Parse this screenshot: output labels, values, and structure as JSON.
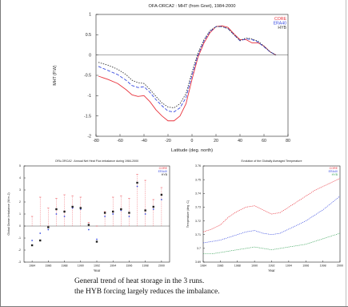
{
  "caption": {
    "line1": "General trend of heat storage in the 3 runs.",
    "line2": "the HYB forcing largely reduces the imbalance."
  },
  "chart_data": [
    {
      "type": "line",
      "title": "OFA-ORCA2 : MHT (from Gnet), 1984-2000",
      "xlabel": "Latitude (deg. north)",
      "ylabel": "MHT (P.W)",
      "xlim": [
        -80,
        80
      ],
      "ylim": [
        -2,
        1
      ],
      "xticks": [
        "-80",
        "-60",
        "-40",
        "-20",
        "0",
        "20",
        "40",
        "60",
        "80"
      ],
      "yticks": [
        "1",
        "0.5",
        "0",
        "-0.5",
        "-1",
        "-1.5",
        "-2"
      ],
      "grid": false,
      "legend": "top-right",
      "zero_line": true,
      "series": [
        {
          "name": "CORE",
          "color": "#e8323c",
          "x": [
            -78,
            -70,
            -62,
            -55,
            -50,
            -45,
            -40,
            -35,
            -30,
            -25,
            -20,
            -15,
            -10,
            -5,
            0,
            5,
            10,
            15,
            20,
            25,
            30,
            35,
            40,
            45,
            50,
            55,
            60,
            65,
            70
          ],
          "y": [
            -0.52,
            -0.6,
            -0.7,
            -0.85,
            -0.98,
            -1.02,
            -1.0,
            -1.15,
            -1.35,
            -1.5,
            -1.62,
            -1.62,
            -1.5,
            -1.2,
            -0.6,
            -0.05,
            0.3,
            0.55,
            0.7,
            0.72,
            0.68,
            0.52,
            0.38,
            0.38,
            0.3,
            0.3,
            0.22,
            0.08,
            0.0
          ]
        },
        {
          "name": "ERA40",
          "color": "#3a4ce0",
          "x": [
            -78,
            -70,
            -62,
            -55,
            -50,
            -45,
            -40,
            -35,
            -30,
            -25,
            -20,
            -15,
            -10,
            -5,
            0,
            5,
            10,
            15,
            20,
            25,
            30,
            35,
            40,
            45,
            50,
            55,
            60,
            65,
            70
          ],
          "y": [
            -0.28,
            -0.38,
            -0.48,
            -0.62,
            -0.75,
            -0.8,
            -0.78,
            -0.92,
            -1.1,
            -1.25,
            -1.38,
            -1.4,
            -1.3,
            -1.05,
            -0.5,
            0.0,
            0.35,
            0.58,
            0.7,
            0.7,
            0.65,
            0.5,
            0.35,
            0.4,
            0.38,
            0.32,
            0.2,
            0.08,
            0.0
          ]
        },
        {
          "name": "HYB",
          "color": "#3a3a3a",
          "x": [
            -78,
            -70,
            -62,
            -55,
            -50,
            -45,
            -40,
            -35,
            -30,
            -25,
            -20,
            -15,
            -10,
            -5,
            0,
            5,
            10,
            15,
            20,
            25,
            30,
            35,
            40,
            45,
            50,
            55,
            60,
            65,
            70
          ],
          "y": [
            -0.18,
            -0.25,
            -0.35,
            -0.48,
            -0.62,
            -0.68,
            -0.7,
            -0.85,
            -1.02,
            -1.18,
            -1.28,
            -1.3,
            -1.2,
            -0.95,
            -0.42,
            0.05,
            0.38,
            0.6,
            0.7,
            0.7,
            0.65,
            0.5,
            0.36,
            0.42,
            0.4,
            0.34,
            0.22,
            0.08,
            0.0
          ]
        }
      ]
    },
    {
      "type": "scatter",
      "title": "OFA-ORCA2 : Annual Net Heat Flux imbalance during 1984-2000",
      "xlabel": "Year",
      "ylabel": "Global Ocean Imbalance (W.m-2)",
      "xlim": [
        1983,
        2001
      ],
      "ylim": [
        -3,
        5
      ],
      "xticks": [
        "1984",
        "1986",
        "1988",
        "1990",
        "1992",
        "1994",
        "1996",
        "1998",
        "2000"
      ],
      "yticks": [
        "5",
        "4",
        "3",
        "2",
        "1",
        "0",
        "-1",
        "-2",
        "-3"
      ],
      "grid": false,
      "legend": "top-right",
      "zero_line": true,
      "series": [
        {
          "name": "CORE",
          "color": "#e8323c",
          "x": [
            1984,
            1985,
            1986,
            1987,
            1988,
            1989,
            1990,
            1991,
            1992,
            1993,
            1994,
            1995,
            1996,
            1997,
            1998,
            1999,
            2000
          ],
          "y": [
            0.8,
            2.4,
            1.5,
            2.3,
            2.6,
            2.5,
            2.4,
            0.3,
            0.0,
            1.2,
            2.4,
            2.5,
            2.3,
            4.3,
            3.8,
            2.2,
            3.2
          ]
        },
        {
          "name": "ERA40",
          "color": "#3a4ce0",
          "x": [
            1984,
            1985,
            1986,
            1987,
            1988,
            1989,
            1990,
            1991,
            1992,
            1993,
            1994,
            1995,
            1996,
            1997,
            1998,
            1999,
            2000
          ],
          "y": [
            -1.2,
            -0.6,
            -0.3,
            1.0,
            0.8,
            1.5,
            1.4,
            -0.3,
            -1.1,
            0.8,
            1.0,
            1.3,
            0.8,
            3.3,
            1.0,
            1.4,
            2.2
          ]
        },
        {
          "name": "HYB",
          "color": "#222222",
          "x": [
            1984,
            1985,
            1986,
            1987,
            1988,
            1989,
            1990,
            1991,
            1992,
            1993,
            1994,
            1995,
            1996,
            1997,
            1998,
            1999,
            2000
          ],
          "y": [
            -1.6,
            -1.2,
            -0.1,
            1.4,
            1.2,
            1.6,
            1.5,
            0.1,
            -1.3,
            1.1,
            1.2,
            1.4,
            1.1,
            3.6,
            1.3,
            1.6,
            2.6
          ]
        }
      ]
    },
    {
      "type": "line",
      "title": "Evolution of the Globally Averaged Temperature",
      "xlabel": "Year",
      "ylabel": "Temperature (deg. C)",
      "xlim": [
        1984,
        2000
      ],
      "ylim": [
        3.69,
        3.76
      ],
      "xticks": [
        "1984",
        "1986",
        "1988",
        "1990",
        "1992",
        "1994",
        "1996",
        "1998",
        "2000"
      ],
      "yticks": [
        "3.76",
        "3.75",
        "3.74",
        "3.73",
        "3.72",
        "3.71",
        "3.7",
        "3.69"
      ],
      "grid": false,
      "legend": "top-right",
      "series": [
        {
          "name": "CORE",
          "color": "#e8323c",
          "x": [
            1984,
            1985,
            1986,
            1987,
            1988,
            1989,
            1990,
            1991,
            1992,
            1993,
            1994,
            1995,
            1996,
            1997,
            1998,
            1999,
            2000
          ],
          "y": [
            3.712,
            3.714,
            3.717,
            3.723,
            3.727,
            3.73,
            3.731,
            3.728,
            3.725,
            3.726,
            3.73,
            3.734,
            3.738,
            3.742,
            3.745,
            3.748,
            3.751
          ]
        },
        {
          "name": "ERA40",
          "color": "#3a4ce0",
          "x": [
            1984,
            1985,
            1986,
            1987,
            1988,
            1989,
            1990,
            1991,
            1992,
            1993,
            1994,
            1995,
            1996,
            1997,
            1998,
            1999,
            2000
          ],
          "y": [
            3.704,
            3.705,
            3.706,
            3.708,
            3.71,
            3.712,
            3.713,
            3.711,
            3.71,
            3.711,
            3.714,
            3.717,
            3.72,
            3.724,
            3.728,
            3.733,
            3.738
          ]
        },
        {
          "name": "HYB",
          "color": "#3aa35a",
          "x": [
            1984,
            1985,
            1986,
            1987,
            1988,
            1989,
            1990,
            1991,
            1992,
            1993,
            1994,
            1995,
            1996,
            1997,
            1998,
            1999,
            2000
          ],
          "y": [
            3.696,
            3.696,
            3.697,
            3.698,
            3.699,
            3.7,
            3.701,
            3.7,
            3.699,
            3.7,
            3.701,
            3.702,
            3.703,
            3.705,
            3.707,
            3.709,
            3.711
          ]
        }
      ]
    }
  ]
}
